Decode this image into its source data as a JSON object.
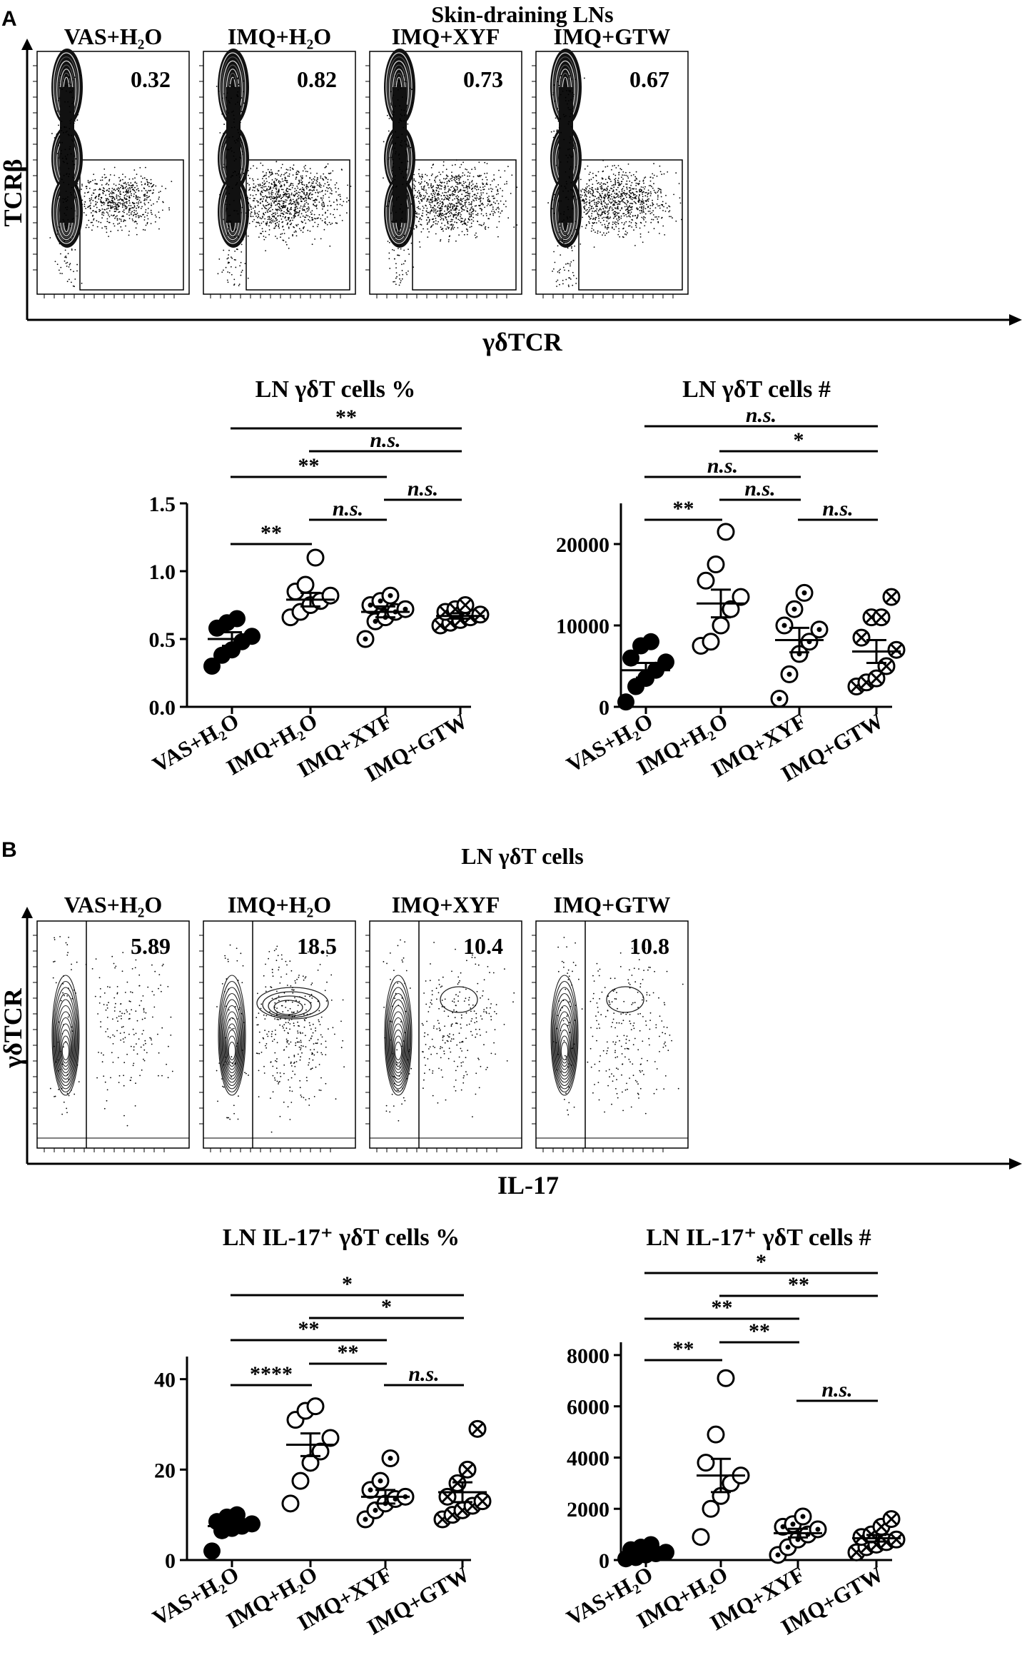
{
  "panel_labels": [
    "A",
    "B"
  ],
  "groups": [
    "VAS+H2O",
    "IMQ+H2O",
    "IMQ+XYF",
    "IMQ+GTW"
  ],
  "chart_data": [
    {
      "type": "flow-cytometry",
      "id": "flowA",
      "title": "Skin-draining LNs",
      "xlabel": "γδTCR",
      "ylabel": "TCRβ",
      "panels": [
        {
          "group": "VAS+H₂O",
          "gate_percent": "0.32",
          "event_density": 0.32
        },
        {
          "group": "IMQ+H₂O",
          "gate_percent": "0.82",
          "event_density": 0.82
        },
        {
          "group": "IMQ+XYF",
          "gate_percent": "0.73",
          "event_density": 0.73
        },
        {
          "group": "IMQ+GTW",
          "gate_percent": "0.67",
          "event_density": 0.67
        }
      ]
    },
    {
      "type": "scatter",
      "id": "sA1",
      "title": "LN γδT cells %",
      "ylim": [
        0,
        1.5
      ],
      "yticks": [
        "0.0",
        "0.5",
        "1.0",
        "1.5"
      ],
      "categories": [
        "VAS+H₂O",
        "IMQ+H₂O",
        "IMQ+XYF",
        "IMQ+GTW"
      ],
      "series": [
        {
          "marker": "filled",
          "values": [
            0.3,
            0.38,
            0.42,
            0.48,
            0.52,
            0.58,
            0.62,
            0.65
          ],
          "mean": 0.5,
          "sem": 0.05
        },
        {
          "marker": "open",
          "values": [
            0.66,
            0.7,
            0.75,
            0.78,
            0.82,
            0.85,
            0.9,
            1.1
          ],
          "mean": 0.79,
          "sem": 0.05
        },
        {
          "marker": "dot",
          "values": [
            0.5,
            0.63,
            0.66,
            0.7,
            0.72,
            0.75,
            0.78,
            0.82
          ],
          "mean": 0.7,
          "sem": 0.04
        },
        {
          "marker": "cross",
          "values": [
            0.6,
            0.62,
            0.64,
            0.66,
            0.68,
            0.7,
            0.72,
            0.75
          ],
          "mean": 0.67,
          "sem": 0.02
        }
      ],
      "comparisons": [
        {
          "from": 0,
          "to": 1,
          "label": "**"
        },
        {
          "from": 1,
          "to": 2,
          "label": "n.s."
        },
        {
          "from": 2,
          "to": 3,
          "label": "n.s."
        },
        {
          "from": 0,
          "to": 2,
          "label": "**"
        },
        {
          "from": 1,
          "to": 3,
          "label": "n.s."
        },
        {
          "from": 0,
          "to": 3,
          "label": "**"
        }
      ]
    },
    {
      "type": "scatter",
      "id": "sA2",
      "title": "LN γδT cells #",
      "ylim": [
        0,
        25000
      ],
      "yticks": [
        "0",
        "10000",
        "20000"
      ],
      "categories": [
        "VAS+H₂O",
        "IMQ+H₂O",
        "IMQ+XYF",
        "IMQ+GTW"
      ],
      "series": [
        {
          "marker": "filled",
          "values": [
            600,
            2500,
            3500,
            4500,
            5500,
            6000,
            7500,
            8000
          ],
          "mean": 4500,
          "sem": 900
        },
        {
          "marker": "open",
          "values": [
            7500,
            8000,
            10000,
            12000,
            13500,
            15500,
            17500,
            21500
          ],
          "mean": 12700,
          "sem": 1700
        },
        {
          "marker": "dot",
          "values": [
            1000,
            4000,
            6500,
            8000,
            9500,
            10000,
            12000,
            14000
          ],
          "mean": 8200,
          "sem": 1500
        },
        {
          "marker": "cross",
          "values": [
            2500,
            3000,
            3500,
            5000,
            7000,
            8500,
            11000,
            11000,
            13500
          ],
          "mean": 6800,
          "sem": 1400
        }
      ],
      "comparisons": [
        {
          "from": 0,
          "to": 1,
          "label": "**"
        },
        {
          "from": 2,
          "to": 3,
          "label": "n.s."
        },
        {
          "from": 1,
          "to": 2,
          "label": "n.s."
        },
        {
          "from": 0,
          "to": 2,
          "label": "n.s."
        },
        {
          "from": 1,
          "to": 3,
          "label": "*"
        },
        {
          "from": 0,
          "to": 3,
          "label": "n.s."
        }
      ]
    },
    {
      "type": "flow-cytometry",
      "id": "flowB",
      "title": "LN γδT cells",
      "xlabel": "IL-17",
      "ylabel": "γδTCR",
      "panels": [
        {
          "group": "VAS+H₂O",
          "gate_percent": "5.89",
          "event_density": 0.35
        },
        {
          "group": "IMQ+H₂O",
          "gate_percent": "18.5",
          "event_density": 1.0
        },
        {
          "group": "IMQ+XYF",
          "gate_percent": "10.4",
          "event_density": 0.6
        },
        {
          "group": "IMQ+GTW",
          "gate_percent": "10.8",
          "event_density": 0.6
        }
      ]
    },
    {
      "type": "scatter",
      "id": "sB1",
      "title": "LN IL-17⁺ γδT cells %",
      "ylim": [
        0,
        45
      ],
      "yticks": [
        "0",
        "20",
        "40"
      ],
      "categories": [
        "VAS+H₂O",
        "IMQ+H₂O",
        "IMQ+XYF",
        "IMQ+GTW"
      ],
      "series": [
        {
          "marker": "filled",
          "values": [
            2,
            6.5,
            7,
            7.5,
            8,
            8.5,
            9.5,
            10
          ],
          "mean": 7.5,
          "sem": 1.0
        },
        {
          "marker": "open",
          "values": [
            12.5,
            17.5,
            21.5,
            24,
            27,
            31,
            33,
            34
          ],
          "mean": 25.5,
          "sem": 2.5
        },
        {
          "marker": "dot",
          "values": [
            9,
            11,
            12.5,
            13.5,
            14,
            15.5,
            17.5,
            22.5
          ],
          "mean": 14,
          "sem": 1.5
        },
        {
          "marker": "cross",
          "values": [
            9,
            10,
            11,
            12,
            13,
            14,
            17,
            20,
            29
          ],
          "mean": 15,
          "sem": 2.2
        }
      ],
      "comparisons": [
        {
          "from": 0,
          "to": 1,
          "label": "****"
        },
        {
          "from": 1,
          "to": 2,
          "label": "**"
        },
        {
          "from": 2,
          "to": 3,
          "label": "n.s."
        },
        {
          "from": 0,
          "to": 2,
          "label": "**"
        },
        {
          "from": 1,
          "to": 3,
          "label": "*"
        },
        {
          "from": 0,
          "to": 3,
          "label": "*"
        }
      ]
    },
    {
      "type": "scatter",
      "id": "sB2",
      "title": "LN IL-17⁺ γδT cells #",
      "ylim": [
        0,
        8500
      ],
      "yticks": [
        "0",
        "2000",
        "4000",
        "6000",
        "8000"
      ],
      "categories": [
        "VAS+H₂O",
        "IMQ+H₂O",
        "IMQ+XYF",
        "IMQ+GTW"
      ],
      "series": [
        {
          "marker": "filled",
          "values": [
            50,
            100,
            200,
            250,
            300,
            400,
            500,
            600
          ],
          "mean": 300,
          "sem": 70
        },
        {
          "marker": "open",
          "values": [
            900,
            2000,
            2500,
            3000,
            3300,
            3800,
            4900,
            7100
          ],
          "mean": 3300,
          "sem": 650
        },
        {
          "marker": "dot",
          "values": [
            200,
            500,
            800,
            1000,
            1200,
            1300,
            1400,
            1700
          ],
          "mean": 1050,
          "sem": 170
        },
        {
          "marker": "cross",
          "values": [
            300,
            500,
            600,
            700,
            800,
            900,
            1000,
            1300,
            1600
          ],
          "mean": 850,
          "sem": 130
        }
      ],
      "comparisons": [
        {
          "from": 0,
          "to": 1,
          "label": "**"
        },
        {
          "from": 1,
          "to": 2,
          "label": "**"
        },
        {
          "from": 2,
          "to": 3,
          "label": "n.s."
        },
        {
          "from": 0,
          "to": 2,
          "label": "**"
        },
        {
          "from": 1,
          "to": 3,
          "label": "**"
        },
        {
          "from": 0,
          "to": 3,
          "label": "*"
        }
      ]
    }
  ]
}
